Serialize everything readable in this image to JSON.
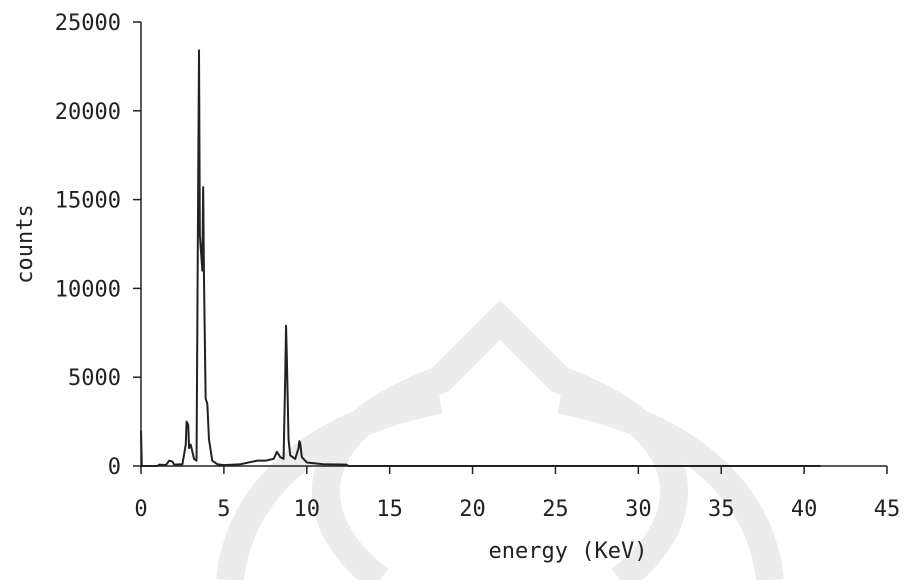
{
  "chart_data": {
    "type": "line",
    "x_label": "energy (KeV)",
    "y_label": "counts",
    "x": [
      0,
      0.05,
      1,
      1.1,
      1.5,
      1.7,
      1.9,
      2.0,
      2.5,
      2.7,
      2.75,
      2.85,
      2.9,
      3.0,
      3.1,
      3.2,
      3.35,
      3.45,
      3.5,
      3.55,
      3.7,
      3.75,
      3.8,
      3.9,
      4.0,
      4.1,
      4.3,
      4.6,
      5,
      6,
      6.5,
      7,
      7.5,
      8,
      8.2,
      8.4,
      8.6,
      8.7,
      8.75,
      8.8,
      8.9,
      9.0,
      9.3,
      9.5,
      9.55,
      9.6,
      9.7,
      10,
      11,
      12.4,
      12.5,
      41
    ],
    "values": [
      2000,
      0,
      0,
      80,
      50,
      300,
      250,
      80,
      100,
      1200,
      2500,
      2300,
      1000,
      1200,
      800,
      400,
      300,
      16000,
      23400,
      13000,
      11000,
      15700,
      10500,
      3800,
      3500,
      1500,
      300,
      100,
      50,
      100,
      200,
      300,
      300,
      400,
      800,
      500,
      400,
      5000,
      7900,
      6000,
      1500,
      600,
      400,
      1000,
      1400,
      1300,
      500,
      200,
      100,
      80,
      0,
      0
    ],
    "color": "#222222",
    "xlim": [
      0,
      45
    ],
    "xticks": [
      0,
      5,
      10,
      15,
      20,
      25,
      30,
      35,
      40,
      45
    ],
    "ylim": [
      0,
      25000
    ],
    "yticks": [
      0,
      5000,
      10000,
      15000,
      20000,
      25000
    ]
  }
}
